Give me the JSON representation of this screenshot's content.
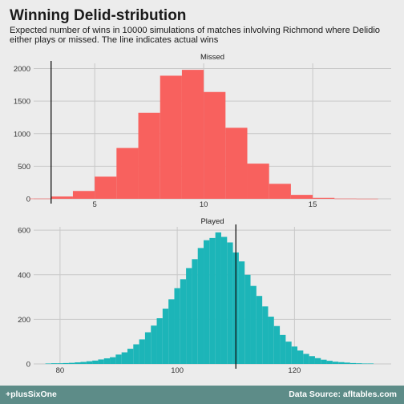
{
  "header": {
    "title": "Winning Delid-stribution",
    "subtitle": "Expected number of wins in 10000 simulations of matches inlvolving Richmond where Delidio either plays or missed. The line indicates actual wins"
  },
  "footer": {
    "left": "+plusSixOne",
    "right": "Data Source: afltables.com"
  },
  "colors": {
    "missed": "#f8615e",
    "played": "#1cb5b8",
    "grid": "#c8c8c8",
    "line": "#111111"
  },
  "chart_data": [
    {
      "type": "bar",
      "title": "Missed",
      "x_ticks": [
        5,
        10,
        15
      ],
      "y_ticks": [
        0,
        500,
        1000,
        1500,
        2000
      ],
      "xlim": [
        2.2,
        18.6
      ],
      "ylim": [
        0,
        2080
      ],
      "bin_width": 1,
      "bins": [
        {
          "x": 2.5,
          "value": 4
        },
        {
          "x": 3.5,
          "value": 35
        },
        {
          "x": 4.5,
          "value": 120
        },
        {
          "x": 5.5,
          "value": 340
        },
        {
          "x": 6.5,
          "value": 780
        },
        {
          "x": 7.5,
          "value": 1320
        },
        {
          "x": 8.5,
          "value": 1890
        },
        {
          "x": 9.5,
          "value": 1980
        },
        {
          "x": 10.5,
          "value": 1640
        },
        {
          "x": 11.5,
          "value": 1090
        },
        {
          "x": 12.5,
          "value": 540
        },
        {
          "x": 13.5,
          "value": 230
        },
        {
          "x": 14.5,
          "value": 60
        },
        {
          "x": 15.5,
          "value": 15
        },
        {
          "x": 16.5,
          "value": 4
        },
        {
          "x": 17.5,
          "value": 2
        }
      ],
      "actual_wins": 3
    },
    {
      "type": "bar",
      "title": "Played",
      "x_ticks": [
        80,
        100,
        120
      ],
      "y_ticks": [
        0,
        200,
        400,
        600
      ],
      "xlim": [
        75.5,
        136.5
      ],
      "ylim": [
        0,
        615
      ],
      "bin_width": 1,
      "bins": [
        {
          "x": 78,
          "value": 2
        },
        {
          "x": 79,
          "value": 3
        },
        {
          "x": 80,
          "value": 3
        },
        {
          "x": 81,
          "value": 4
        },
        {
          "x": 82,
          "value": 5
        },
        {
          "x": 83,
          "value": 7
        },
        {
          "x": 84,
          "value": 9
        },
        {
          "x": 85,
          "value": 12
        },
        {
          "x": 86,
          "value": 15
        },
        {
          "x": 87,
          "value": 20
        },
        {
          "x": 88,
          "value": 25
        },
        {
          "x": 89,
          "value": 30
        },
        {
          "x": 90,
          "value": 42
        },
        {
          "x": 91,
          "value": 52
        },
        {
          "x": 92,
          "value": 68
        },
        {
          "x": 93,
          "value": 88
        },
        {
          "x": 94,
          "value": 110
        },
        {
          "x": 95,
          "value": 142
        },
        {
          "x": 96,
          "value": 172
        },
        {
          "x": 97,
          "value": 205
        },
        {
          "x": 98,
          "value": 248
        },
        {
          "x": 99,
          "value": 290
        },
        {
          "x": 100,
          "value": 340
        },
        {
          "x": 101,
          "value": 380
        },
        {
          "x": 102,
          "value": 430
        },
        {
          "x": 103,
          "value": 470
        },
        {
          "x": 104,
          "value": 520
        },
        {
          "x": 105,
          "value": 555
        },
        {
          "x": 106,
          "value": 565
        },
        {
          "x": 107,
          "value": 590
        },
        {
          "x": 108,
          "value": 570
        },
        {
          "x": 109,
          "value": 545
        },
        {
          "x": 110,
          "value": 500
        },
        {
          "x": 111,
          "value": 460
        },
        {
          "x": 112,
          "value": 400
        },
        {
          "x": 113,
          "value": 350
        },
        {
          "x": 114,
          "value": 305
        },
        {
          "x": 115,
          "value": 258
        },
        {
          "x": 116,
          "value": 212
        },
        {
          "x": 117,
          "value": 170
        },
        {
          "x": 118,
          "value": 130
        },
        {
          "x": 119,
          "value": 100
        },
        {
          "x": 120,
          "value": 78
        },
        {
          "x": 121,
          "value": 60
        },
        {
          "x": 122,
          "value": 45
        },
        {
          "x": 123,
          "value": 35
        },
        {
          "x": 124,
          "value": 26
        },
        {
          "x": 125,
          "value": 19
        },
        {
          "x": 126,
          "value": 14
        },
        {
          "x": 127,
          "value": 10
        },
        {
          "x": 128,
          "value": 8
        },
        {
          "x": 129,
          "value": 6
        },
        {
          "x": 130,
          "value": 4
        },
        {
          "x": 131,
          "value": 3
        },
        {
          "x": 132,
          "value": 2
        },
        {
          "x": 133,
          "value": 2
        }
      ],
      "actual_wins": 110
    }
  ]
}
